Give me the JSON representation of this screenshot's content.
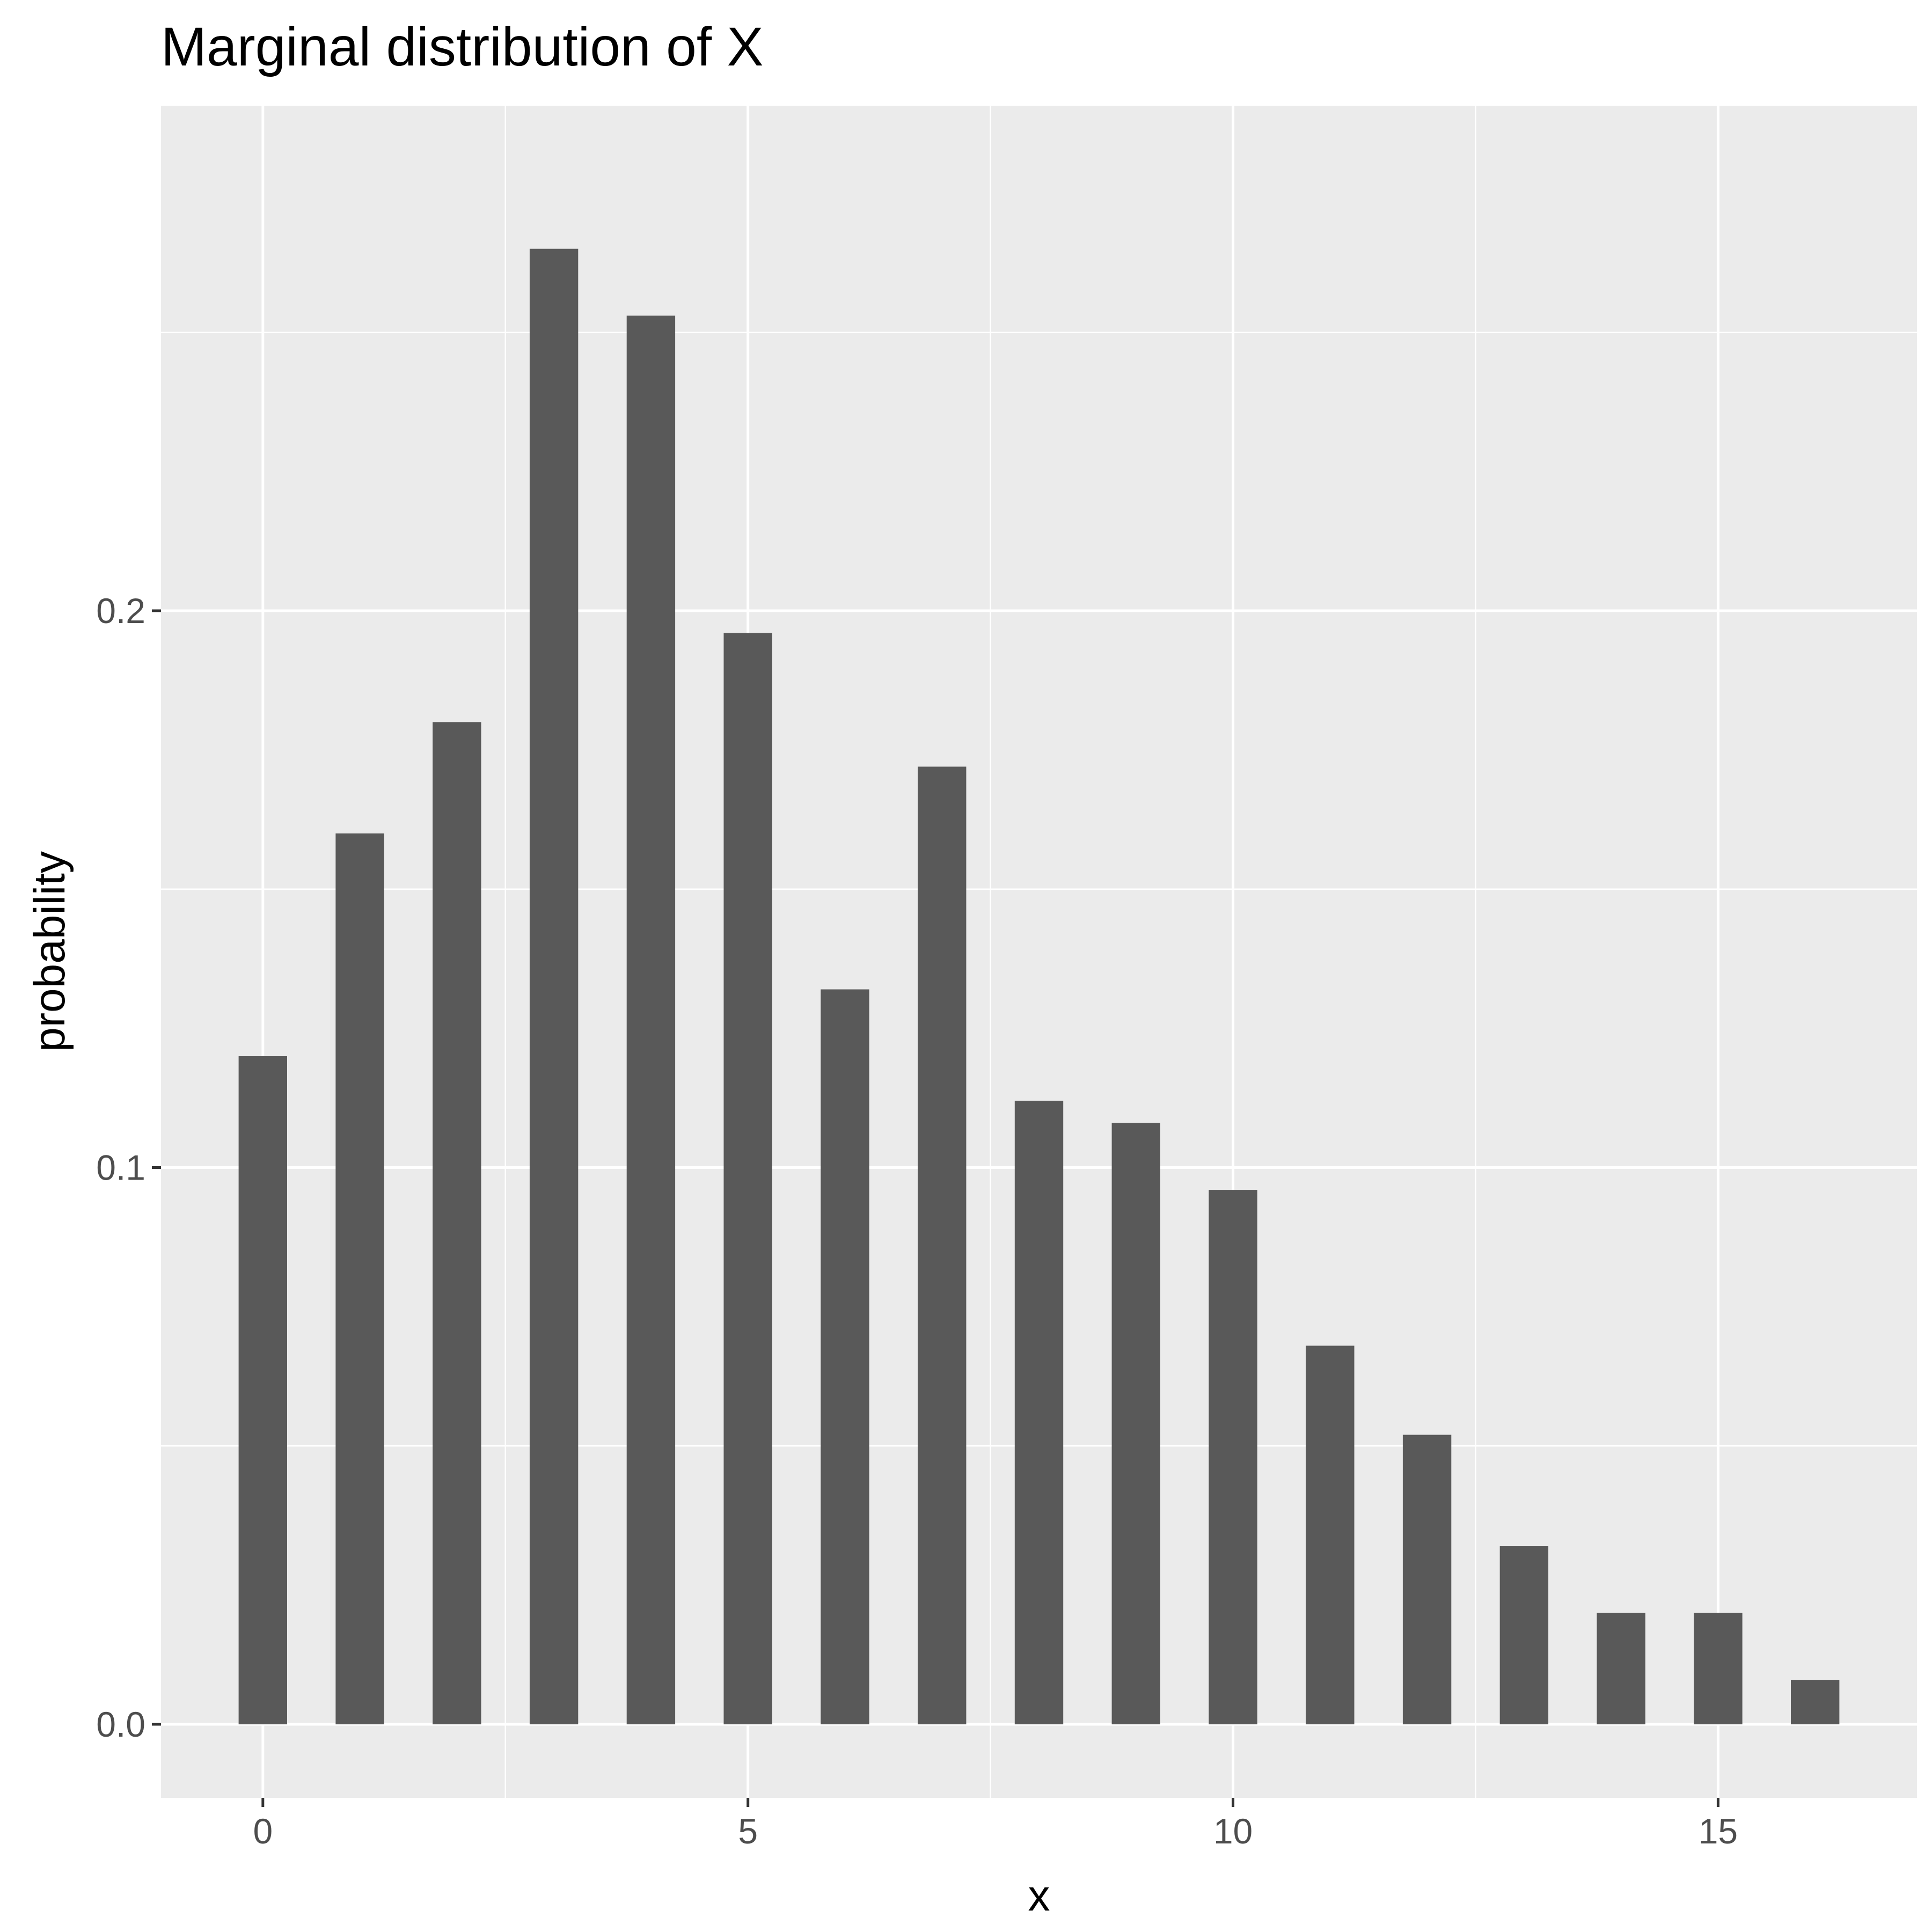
{
  "chart_data": {
    "type": "bar",
    "title": "Marginal distribution of X",
    "xlabel": "x",
    "ylabel": "probability",
    "x": [
      0,
      1,
      2,
      3,
      4,
      5,
      6,
      7,
      8,
      9,
      10,
      11,
      12,
      13,
      14,
      15,
      16
    ],
    "values": [
      0.12,
      0.16,
      0.18,
      0.265,
      0.253,
      0.196,
      0.132,
      0.172,
      0.112,
      0.108,
      0.096,
      0.068,
      0.052,
      0.032,
      0.02,
      0.02,
      0.008
    ],
    "xlim": [
      -1.05,
      17.05
    ],
    "ylim": [
      -0.0132,
      0.2907
    ],
    "x_ticks": [
      0,
      5,
      10,
      15
    ],
    "x_tick_labels": [
      "0",
      "5",
      "10",
      "15"
    ],
    "y_ticks": [
      0.0,
      0.1,
      0.2
    ],
    "y_tick_labels": [
      "0.0",
      "0.1",
      "0.2"
    ],
    "grid": true,
    "legend": "none",
    "colors": {
      "bar": "#595959",
      "panel": "#ebebeb",
      "grid": "#ffffff",
      "tick_text": "#4d4d4d",
      "tick_mark": "#333333"
    }
  }
}
